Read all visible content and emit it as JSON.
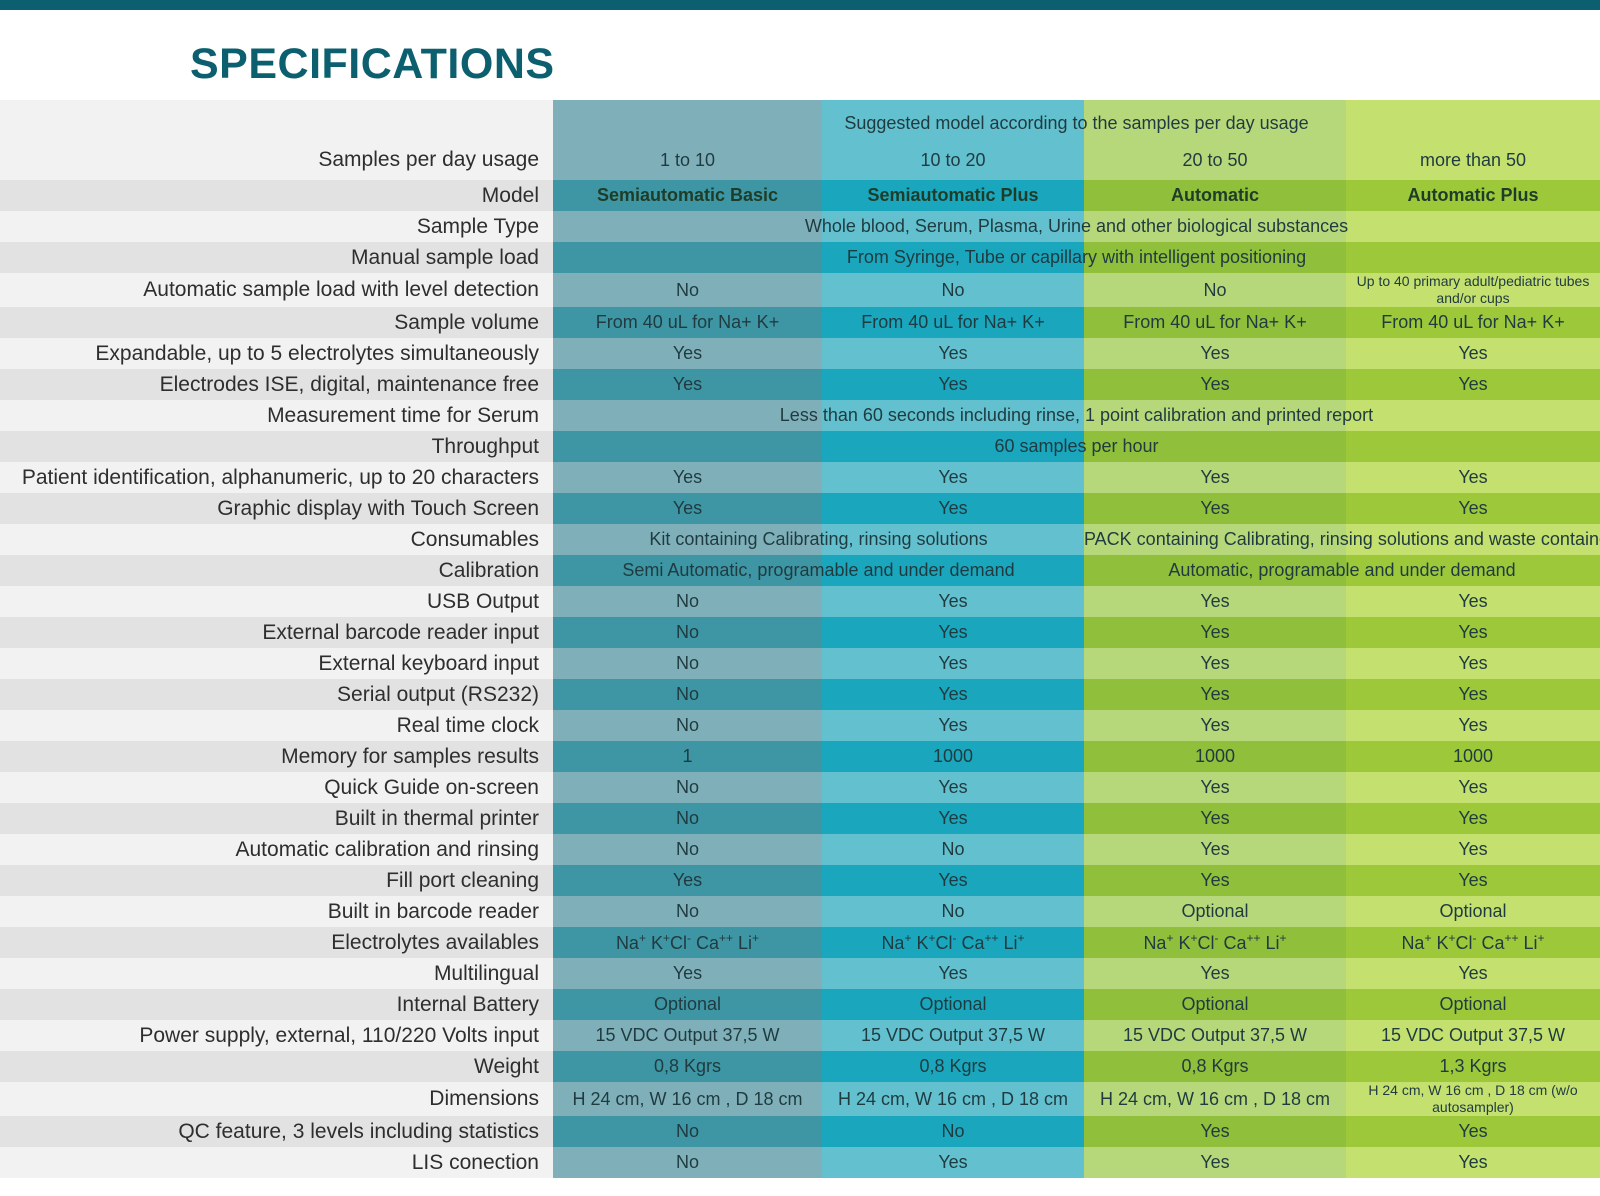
{
  "title": "SPECIFICATIONS",
  "suggested_header": "Suggested model according to the samples per day usage",
  "usage": {
    "label": "Samples per day usage",
    "values": [
      "1 to 10",
      "10 to 20",
      "20 to 50",
      "more than 50"
    ]
  },
  "model": {
    "label": "Model",
    "values": [
      "Semiautomatic Basic",
      "Semiautomatic Plus",
      "Automatic",
      "Automatic Plus"
    ]
  },
  "rows": [
    {
      "label": "Sample Type",
      "span": "Whole blood, Serum, Plasma, Urine and other biological substances"
    },
    {
      "label": "Manual sample load",
      "span": "From Syringe, Tube or capillary with intelligent positioning"
    },
    {
      "label": "Automatic sample load with level detection",
      "cells": [
        "No",
        "No",
        "No",
        "Up to 40 primary adult/pediatric tubes and/or cups"
      ]
    },
    {
      "label": "Sample volume",
      "cells": [
        "From 40 uL for Na+ K+",
        "From 40 uL for Na+ K+",
        "From 40 uL for Na+ K+",
        "From 40 uL for Na+ K+"
      ]
    },
    {
      "label": "Expandable, up to 5 electrolytes simultaneously",
      "cells": [
        "Yes",
        "Yes",
        "Yes",
        "Yes"
      ]
    },
    {
      "label": "Electrodes ISE, digital, maintenance free",
      "cells": [
        "Yes",
        "Yes",
        "Yes",
        "Yes"
      ]
    },
    {
      "label": "Measurement time for Serum",
      "span": "Less than 60 seconds including rinse, 1 point calibration and printed report"
    },
    {
      "label": "Throughput",
      "span": "60 samples per hour"
    },
    {
      "label": "Patient identification, alphanumeric, up to 20 characters",
      "cells": [
        "Yes",
        "Yes",
        "Yes",
        "Yes"
      ]
    },
    {
      "label": "Graphic display with Touch Screen",
      "cells": [
        "Yes",
        "Yes",
        "Yes",
        "Yes"
      ]
    },
    {
      "label": "Consumables",
      "pair": [
        "Kit containing Calibrating, rinsing solutions",
        "PACK containing Calibrating, rinsing solutions and waste container"
      ]
    },
    {
      "label": "Calibration",
      "pair": [
        "Semi Automatic, programable and under demand",
        "Automatic, programable and under demand"
      ]
    },
    {
      "label": "USB Output",
      "cells": [
        "No",
        "Yes",
        "Yes",
        "Yes"
      ]
    },
    {
      "label": "External barcode reader input",
      "cells": [
        "No",
        "Yes",
        "Yes",
        "Yes"
      ]
    },
    {
      "label": "External keyboard input",
      "cells": [
        "No",
        "Yes",
        "Yes",
        "Yes"
      ]
    },
    {
      "label": "Serial output (RS232)",
      "cells": [
        "No",
        "Yes",
        "Yes",
        "Yes"
      ]
    },
    {
      "label": "Real time clock",
      "cells": [
        "No",
        "Yes",
        "Yes",
        "Yes"
      ]
    },
    {
      "label": "Memory for samples  results",
      "cells": [
        "1",
        "1000",
        "1000",
        "1000"
      ]
    },
    {
      "label": "Quick Guide on-screen",
      "cells": [
        "No",
        "Yes",
        "Yes",
        "Yes"
      ]
    },
    {
      "label": "Built in thermal printer",
      "cells": [
        "No",
        "Yes",
        "Yes",
        "Yes"
      ]
    },
    {
      "label": "Automatic calibration and rinsing",
      "cells": [
        "No",
        "No",
        "Yes",
        "Yes"
      ]
    },
    {
      "label": "Fill port cleaning",
      "cells": [
        "Yes",
        "Yes",
        "Yes",
        "Yes"
      ]
    },
    {
      "label": "Built in barcode reader",
      "cells": [
        "No",
        "No",
        "Optional",
        "Optional"
      ]
    },
    {
      "label": "Electrolytes availables",
      "electrolytes": [
        "Na",
        "+",
        " K",
        "+",
        "Cl",
        "-",
        " Ca",
        "++",
        " Li",
        "+"
      ]
    },
    {
      "label": "Multilingual",
      "cells": [
        "Yes",
        "Yes",
        "Yes",
        "Yes"
      ]
    },
    {
      "label": "Internal Battery",
      "cells": [
        "Optional",
        "Optional",
        "Optional",
        "Optional"
      ]
    },
    {
      "label": "Power supply, external, 110/220 Volts input",
      "cells": [
        "15 VDC Output 37,5  W",
        "15 VDC Output 37,5  W",
        "15 VDC Output 37,5  W",
        "15 VDC Output 37,5  W"
      ]
    },
    {
      "label": "Weight",
      "cells": [
        "0,8 Kgrs",
        "0,8 Kgrs",
        "0,8 Kgrs",
        "1,3 Kgrs"
      ]
    },
    {
      "label": "Dimensions",
      "cells": [
        "H 24 cm, W 16 cm , D 18 cm",
        "H 24 cm, W 16 cm , D 18 cm",
        "H 24 cm, W 16 cm , D 18 cm",
        "H 24 cm, W 16 cm , D 18 cm (w/o autosampler)"
      ]
    },
    {
      "label": "QC feature, 3 levels including statistics",
      "cells": [
        "No",
        "No",
        "Yes",
        "Yes"
      ]
    },
    {
      "label": "LIS conection",
      "cells": [
        "No",
        "Yes",
        "Yes",
        "Yes"
      ]
    }
  ]
}
